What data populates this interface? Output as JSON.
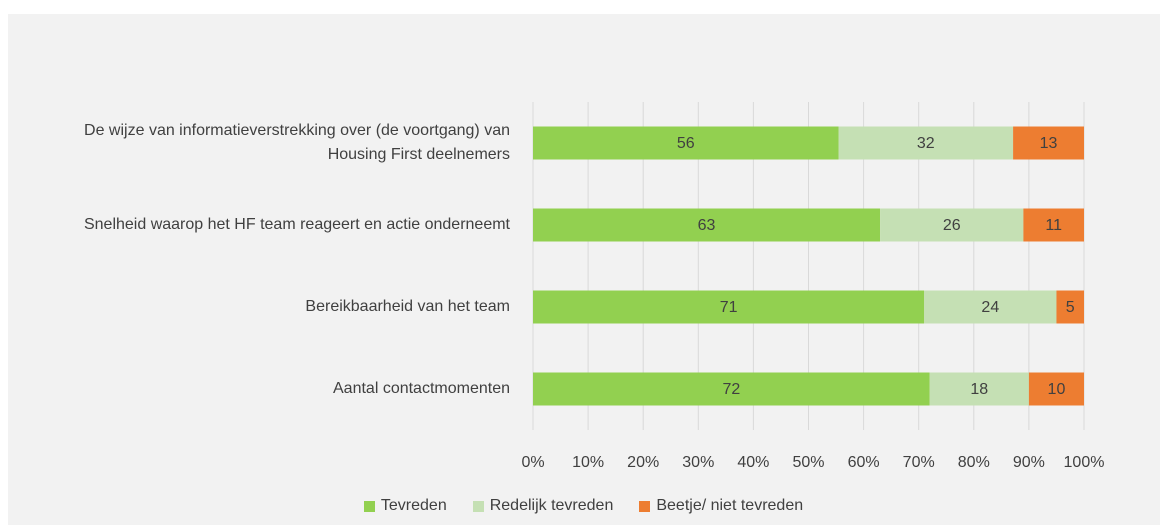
{
  "chart_data": {
    "type": "stacked100",
    "categories": [
      "De wijze van informatieverstrekking over (de voortgang) van Housing First deelnemers",
      "Snelheid waarop het HF team reageert en actie onderneemt",
      "Bereikbaarheid van het team",
      "Aantal contactmomenten"
    ],
    "series": [
      {
        "name": "Tevreden",
        "color": "#92d050",
        "values": [
          56,
          63,
          71,
          72
        ]
      },
      {
        "name": "Redelijk tevreden",
        "color": "#c5e0b4",
        "values": [
          32,
          26,
          24,
          18
        ]
      },
      {
        "name": "Beetje/ niet tevreden",
        "color": "#ed7d31",
        "values": [
          13,
          11,
          5,
          10
        ]
      }
    ],
    "xlim": [
      0,
      100
    ],
    "xticks": [
      {
        "value": 0,
        "label": "0%"
      },
      {
        "value": 10,
        "label": "10%"
      },
      {
        "value": 20,
        "label": "20%"
      },
      {
        "value": 30,
        "label": "30%"
      },
      {
        "value": 40,
        "label": "40%"
      },
      {
        "value": 50,
        "label": "50%"
      },
      {
        "value": 60,
        "label": "60%"
      },
      {
        "value": 70,
        "label": "70%"
      },
      {
        "value": 80,
        "label": "80%"
      },
      {
        "value": 90,
        "label": "90%"
      },
      {
        "value": 100,
        "label": "100%"
      }
    ],
    "grid": true,
    "legend": "bottom"
  }
}
